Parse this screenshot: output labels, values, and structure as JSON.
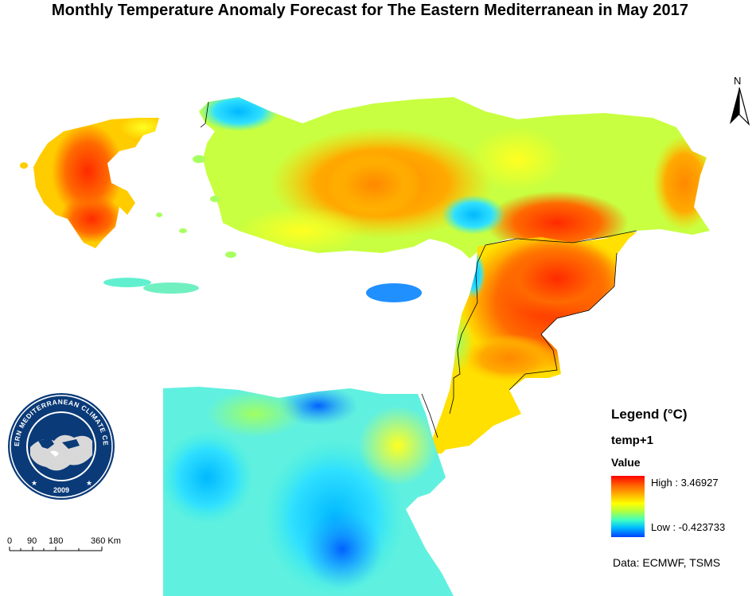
{
  "title": "Monthly Temperature Anomaly Forecast for The Eastern Mediterranean in May 2017",
  "north_arrow": {
    "icon": "north-arrow-icon",
    "label": "N"
  },
  "legend": {
    "title": "Legend (°C)",
    "layer": "temp+1",
    "field": "Value",
    "high_label": "High : 3.46927",
    "low_label": "Low : -0.423733",
    "high_value": 3.46927,
    "low_value": -0.423733,
    "colors": [
      "#ff0000",
      "#ffb000",
      "#ffff00",
      "#40ffc0",
      "#00c0ff",
      "#0040ff"
    ]
  },
  "scale_bar": {
    "labels": [
      "0",
      "90",
      "180",
      "360 Km"
    ]
  },
  "credit": "Data: ECMWF, TSMS",
  "logo": {
    "icon": "emcc-seal-icon",
    "text": "EASTERN MEDITERRANEAN CLIMATE CENTRE",
    "year": "2009"
  }
}
